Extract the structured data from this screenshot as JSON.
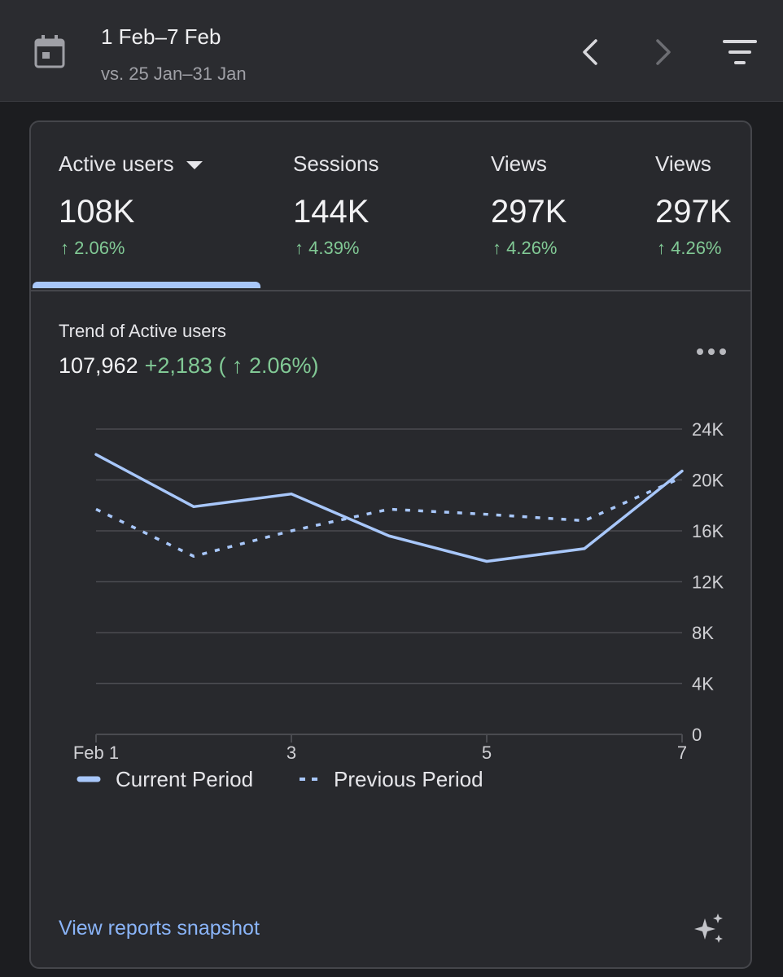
{
  "header": {
    "date_range": "1 Feb–7 Feb",
    "compare_range": "vs. 25 Jan–31 Jan",
    "icons": {
      "calendar": "calendar-icon",
      "prev": "chevron-left-icon",
      "next": "chevron-right-icon",
      "filter": "filter-icon"
    }
  },
  "metrics": [
    {
      "label": "Active users",
      "value": "108K",
      "delta": "↑ 2.06%",
      "selected": true
    },
    {
      "label": "Sessions",
      "value": "144K",
      "delta": "↑ 4.39%"
    },
    {
      "label": "Views",
      "value": "297K",
      "delta": "↑ 4.26%"
    },
    {
      "label": "Views",
      "value": "297K",
      "delta": "↑ 4.26%"
    }
  ],
  "trend": {
    "title": "Trend of Active users",
    "total": "107,962",
    "change": "+2,183 ( ↑ 2.06%)"
  },
  "chart_data": {
    "type": "line",
    "x": [
      1,
      2,
      3,
      4,
      5,
      6,
      7
    ],
    "x_tick_labels": [
      "Feb 1",
      "3",
      "5",
      "7"
    ],
    "x_tick_positions": [
      1,
      3,
      5,
      7
    ],
    "y_tick_labels": [
      "0",
      "4K",
      "8K",
      "12K",
      "16K",
      "20K",
      "24K"
    ],
    "ylim": [
      0,
      24000
    ],
    "grid": true,
    "legend_position": "bottom",
    "series": [
      {
        "name": "Current Period",
        "style": "solid",
        "values": [
          22000,
          17900,
          18900,
          15600,
          13600,
          14600,
          20700
        ]
      },
      {
        "name": "Previous Period",
        "style": "dotted",
        "values": [
          17700,
          14000,
          16000,
          17700,
          17300,
          16800,
          20200
        ]
      }
    ],
    "colors": {
      "line": "#a8c7fa",
      "grid": "#4a4b50",
      "axis_text": "#d0d0d4"
    }
  },
  "footer": {
    "link": "View reports snapshot",
    "sparkle_icon": "sparkle-icon"
  }
}
